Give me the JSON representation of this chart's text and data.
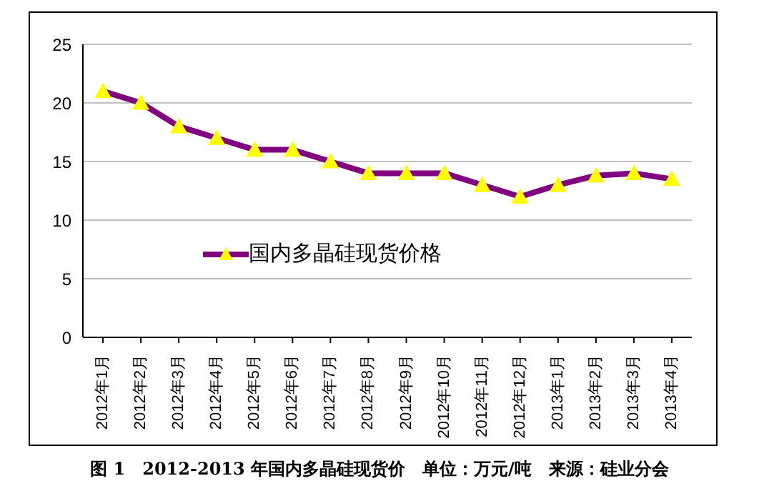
{
  "chart_data": {
    "type": "line",
    "categories": [
      "2012年1月",
      "2012年2月",
      "2012年3月",
      "2012年4月",
      "2012年5月",
      "2012年6月",
      "2012年7月",
      "2012年8月",
      "2012年9月",
      "2012年10月",
      "2012年11月",
      "2012年12月",
      "2013年1月",
      "2013年2月",
      "2013年3月",
      "2013年4月"
    ],
    "series": [
      {
        "name": "国内多晶硅现货价格",
        "color": "#800080",
        "values": [
          21,
          20,
          18,
          17,
          16,
          16,
          15,
          14,
          14,
          14,
          13,
          12,
          13,
          13.8,
          14,
          13.5
        ]
      }
    ],
    "ylim": [
      0,
      25
    ],
    "yticks": [
      0,
      5,
      10,
      15,
      20,
      25
    ],
    "grid": "y",
    "legend": "bottom left",
    "marker": "triangle",
    "line_style": "solid",
    "annotations": [
      "图 1　2012-2013 年国内多晶硅现货价　单位：万元/吨　来源：硅业分会"
    ]
  }
}
